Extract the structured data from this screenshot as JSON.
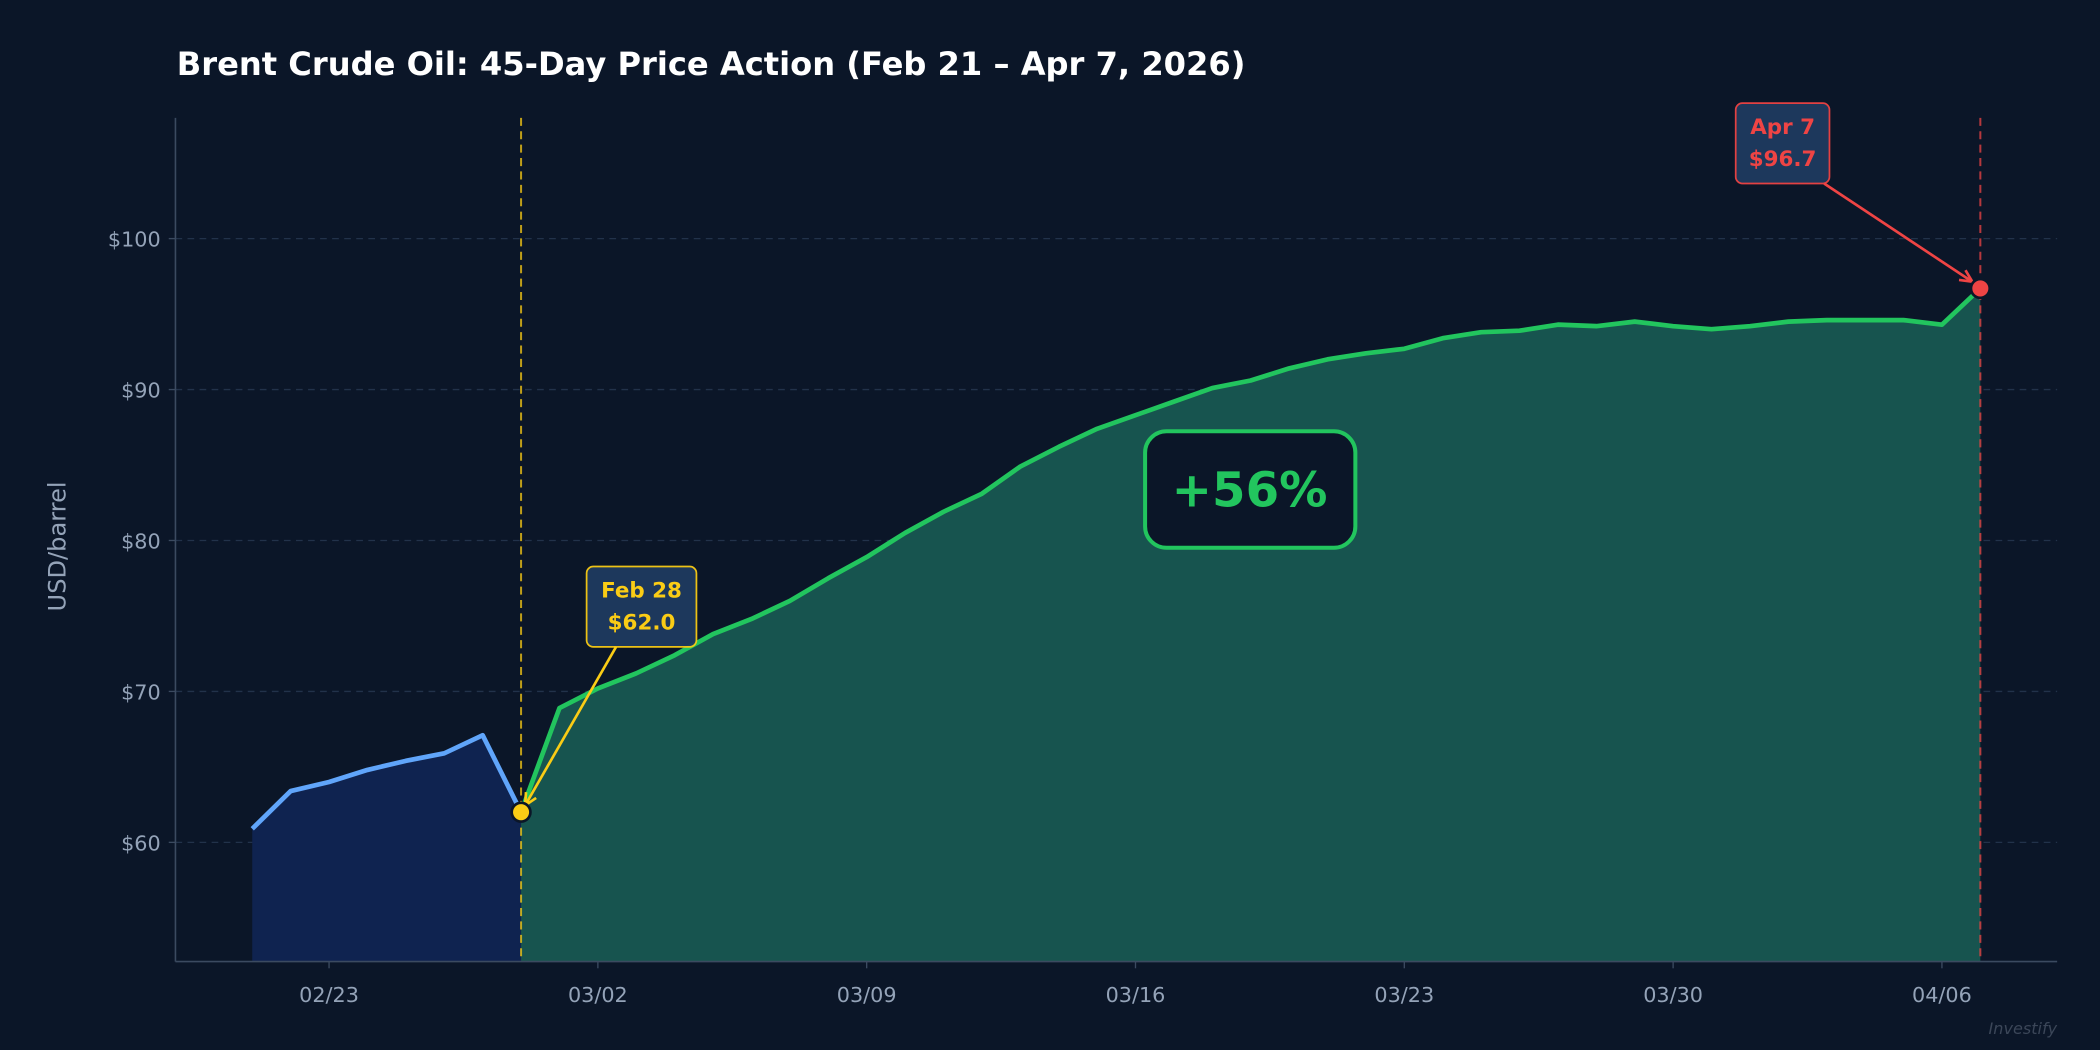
{
  "chart_data": {
    "type": "area",
    "title": "Brent Crude Oil: 45-Day Price Action (Feb 21 – Apr 7, 2026)",
    "xlabel": "",
    "ylabel": "USD/barrel",
    "ylim": [
      52.1,
      108
    ],
    "xlim": [
      "2026-02-19",
      "2026-04-09"
    ],
    "grid": true,
    "y_ticks": [
      60,
      70,
      80,
      90,
      100
    ],
    "y_tick_labels": [
      "$60",
      "$70",
      "$80",
      "$90",
      "$100"
    ],
    "x_ticks": [
      "2026-02-23",
      "2026-03-02",
      "2026-03-09",
      "2026-03-16",
      "2026-03-23",
      "2026-03-30",
      "2026-04-06"
    ],
    "x_tick_labels": [
      "02/23",
      "03/02",
      "03/09",
      "03/16",
      "03/23",
      "03/30",
      "04/06"
    ],
    "series": [
      {
        "color": "#60a5fa",
        "fill": "#0f2350",
        "x": [
          "2026-02-21",
          "2026-02-22",
          "2026-02-23",
          "2026-02-24",
          "2026-02-25",
          "2026-02-26",
          "2026-02-27",
          "2026-02-28"
        ],
        "values": [
          60.9,
          63.4,
          64.0,
          64.8,
          65.4,
          65.9,
          67.1,
          62.0
        ]
      },
      {
        "color": "#22c55e",
        "fill": "#17544f",
        "x": [
          "2026-02-28",
          "2026-03-01",
          "2026-03-02",
          "2026-03-03",
          "2026-03-04",
          "2026-03-05",
          "2026-03-06",
          "2026-03-07",
          "2026-03-08",
          "2026-03-09",
          "2026-03-10",
          "2026-03-11",
          "2026-03-12",
          "2026-03-13",
          "2026-03-14",
          "2026-03-15",
          "2026-03-16",
          "2026-03-17",
          "2026-03-18",
          "2026-03-19",
          "2026-03-20",
          "2026-03-21",
          "2026-03-22",
          "2026-03-23",
          "2026-03-24",
          "2026-03-25",
          "2026-03-26",
          "2026-03-27",
          "2026-03-28",
          "2026-03-29",
          "2026-03-30",
          "2026-03-31",
          "2026-04-01",
          "2026-04-02",
          "2026-04-03",
          "2026-04-04",
          "2026-04-05",
          "2026-04-06",
          "2026-04-07"
        ],
        "values": [
          62.0,
          68.9,
          70.2,
          71.2,
          72.4,
          73.8,
          74.8,
          76.0,
          77.5,
          78.9,
          80.5,
          81.9,
          83.1,
          84.9,
          86.2,
          87.4,
          88.3,
          89.2,
          90.1,
          90.6,
          91.4,
          92.0,
          92.4,
          92.7,
          93.4,
          93.8,
          93.9,
          94.3,
          94.2,
          94.5,
          94.2,
          94.0,
          94.2,
          94.5,
          94.6,
          94.6,
          94.6,
          94.3,
          96.7
        ]
      }
    ],
    "annotations": [
      {
        "date": "2026-02-28",
        "value": 62.0,
        "line1": "Feb 28",
        "line2": "$62.0",
        "color": "#facc15"
      },
      {
        "date": "2026-04-07",
        "value": 96.7,
        "line1": "Apr 7",
        "line2": "$96.7",
        "color": "#ef4444"
      }
    ],
    "badge": {
      "text": "+56%",
      "color": "#22c55e"
    },
    "watermark": "Investify",
    "colors": {
      "background": "#0b1628",
      "grid": "#22324a",
      "axis": "#3b4a60",
      "tick_text": "#94a3b8",
      "annotation_box": "#1e3a5f"
    }
  }
}
